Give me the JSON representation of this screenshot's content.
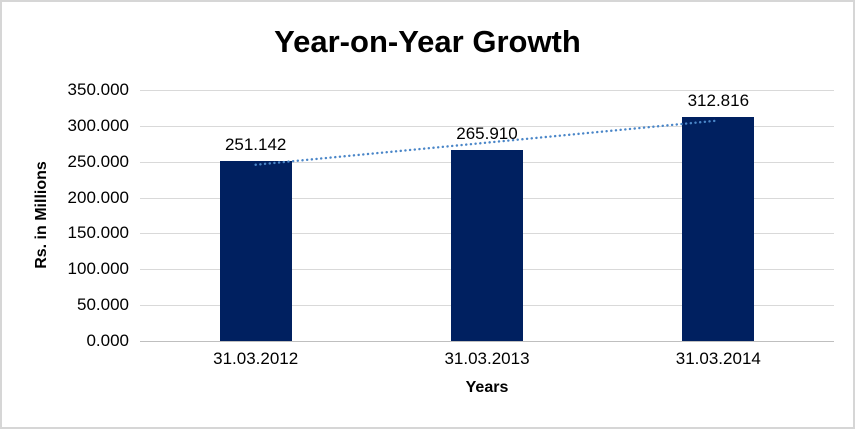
{
  "page": {
    "background": "#ffffff",
    "border_color": "#d6d6d6"
  },
  "chart_data": {
    "type": "bar",
    "title": "Year-on-Year Growth",
    "categories": [
      "31.03.2012",
      "31.03.2013",
      "31.03.2014"
    ],
    "values": [
      251.142,
      265.91,
      312.816
    ],
    "data_labels": [
      "251.142",
      "265.910",
      "312.816"
    ],
    "xlabel": "Years",
    "ylabel": "Rs. in Millions",
    "ylim": [
      0,
      350
    ],
    "ytick_interval": 50,
    "ytick_labels": [
      "350.000",
      "300.000",
      "250.000",
      "200.000",
      "150.000",
      "100.000",
      "50.000",
      "0.000"
    ],
    "grid": true,
    "legend": false,
    "bar_color": "#002060",
    "gridline_color": "#d9d9d9",
    "axis_line_color": "#bfbfbf",
    "trendline": {
      "type": "linear",
      "style": "dotted",
      "color": "#4a86c8"
    }
  }
}
